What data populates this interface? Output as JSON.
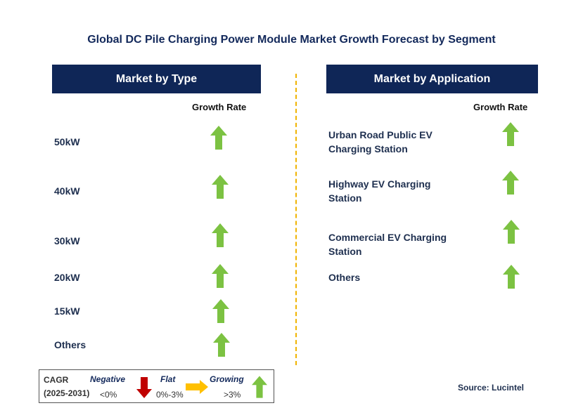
{
  "title": "Global DC Pile Charging Power Module Market Growth Forecast by Segment",
  "left_panel": {
    "header": "Market by Type",
    "column_label": "Growth Rate",
    "rows": [
      {
        "label": "50kW",
        "trend": "growing"
      },
      {
        "label": "40kW",
        "trend": "growing"
      },
      {
        "label": "30kW",
        "trend": "growing"
      },
      {
        "label": "20kW",
        "trend": "growing"
      },
      {
        "label": "15kW",
        "trend": "growing"
      },
      {
        "label": "Others",
        "trend": "growing"
      }
    ]
  },
  "right_panel": {
    "header": "Market by Application",
    "column_label": "Growth Rate",
    "rows": [
      {
        "line1": "Urban Road Public EV",
        "line2": "Charging Station",
        "trend": "growing"
      },
      {
        "line1": "Highway EV Charging",
        "line2": "Station",
        "trend": "growing"
      },
      {
        "line1": "Commercial EV Charging",
        "line2": "Station",
        "trend": "growing"
      },
      {
        "line1": "Others",
        "line2": "",
        "trend": "growing"
      }
    ]
  },
  "legend": {
    "cagr": "CAGR",
    "period": "(2025-2031)",
    "negative": {
      "label": "Negative",
      "range": "<0%"
    },
    "flat": {
      "label": "Flat",
      "range": "0%-3%"
    },
    "growing": {
      "label": "Growing",
      "range": ">3%"
    }
  },
  "source": "Source: Lucintel",
  "colors": {
    "header_bg": "#0f2657",
    "growing": "#7cc242",
    "negative": "#c00000",
    "flat": "#ffc000",
    "divider": "#f0b400"
  }
}
